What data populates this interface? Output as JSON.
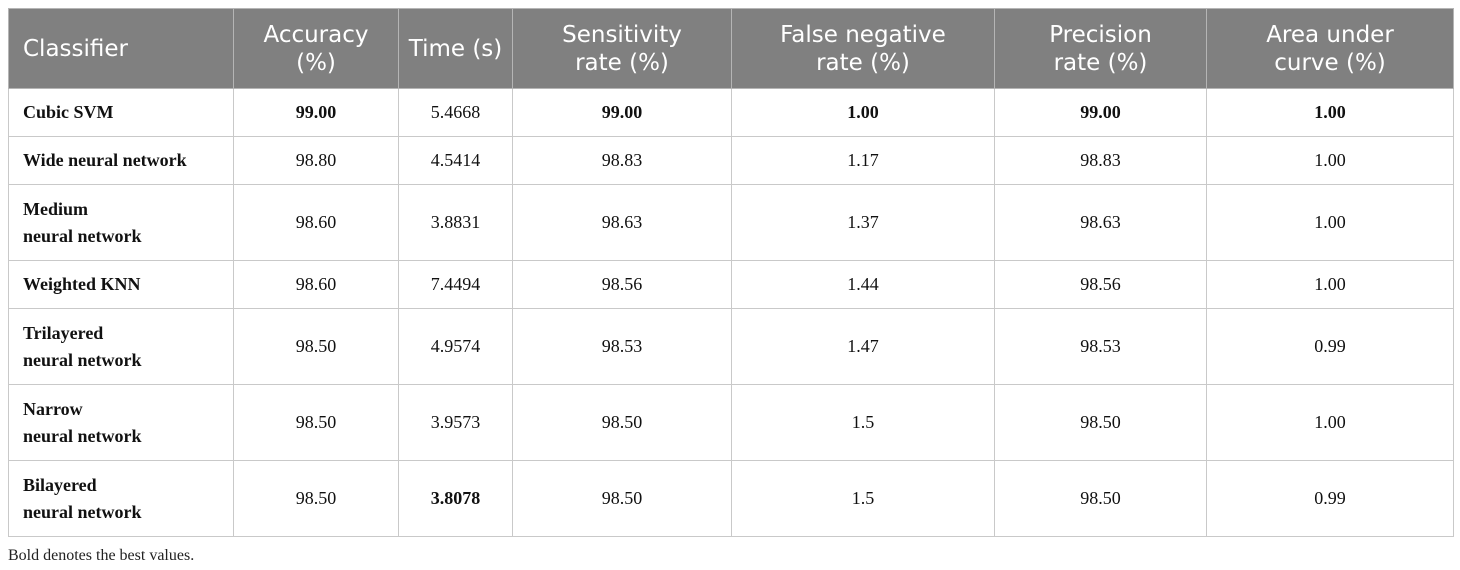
{
  "table": {
    "headers": [
      "Classifier",
      "Accuracy\n(%)",
      "Time (s)",
      "Sensitivity\nrate (%)",
      "False negative\nrate (%)",
      "Precision\nrate (%)",
      "Area under\ncurve (%)"
    ],
    "rows": [
      {
        "name": "Cubic SVM",
        "cells": [
          "99.00",
          "5.4668",
          "99.00",
          "1.00",
          "99.00",
          "1.00"
        ],
        "bold": [
          true,
          false,
          true,
          true,
          true,
          true
        ]
      },
      {
        "name": "Wide neural network",
        "cells": [
          "98.80",
          "4.5414",
          "98.83",
          "1.17",
          "98.83",
          "1.00"
        ],
        "bold": [
          false,
          false,
          false,
          false,
          false,
          false
        ]
      },
      {
        "name": "Medium\nneural network",
        "cells": [
          "98.60",
          "3.8831",
          "98.63",
          "1.37",
          "98.63",
          "1.00"
        ],
        "bold": [
          false,
          false,
          false,
          false,
          false,
          false
        ]
      },
      {
        "name": "Weighted KNN",
        "cells": [
          "98.60",
          "7.4494",
          "98.56",
          "1.44",
          "98.56",
          "1.00"
        ],
        "bold": [
          false,
          false,
          false,
          false,
          false,
          false
        ]
      },
      {
        "name": "Trilayered\nneural network",
        "cells": [
          "98.50",
          "4.9574",
          "98.53",
          "1.47",
          "98.53",
          "0.99"
        ],
        "bold": [
          false,
          false,
          false,
          false,
          false,
          false
        ]
      },
      {
        "name": "Narrow\nneural network",
        "cells": [
          "98.50",
          "3.9573",
          "98.50",
          "1.5",
          "98.50",
          "1.00"
        ],
        "bold": [
          false,
          false,
          false,
          false,
          false,
          false
        ]
      },
      {
        "name": "Bilayered\nneural network",
        "cells": [
          "98.50",
          "3.8078",
          "98.50",
          "1.5",
          "98.50",
          "0.99"
        ],
        "bold": [
          false,
          true,
          false,
          false,
          false,
          false
        ]
      }
    ]
  },
  "footnote": "Bold denotes the best values."
}
